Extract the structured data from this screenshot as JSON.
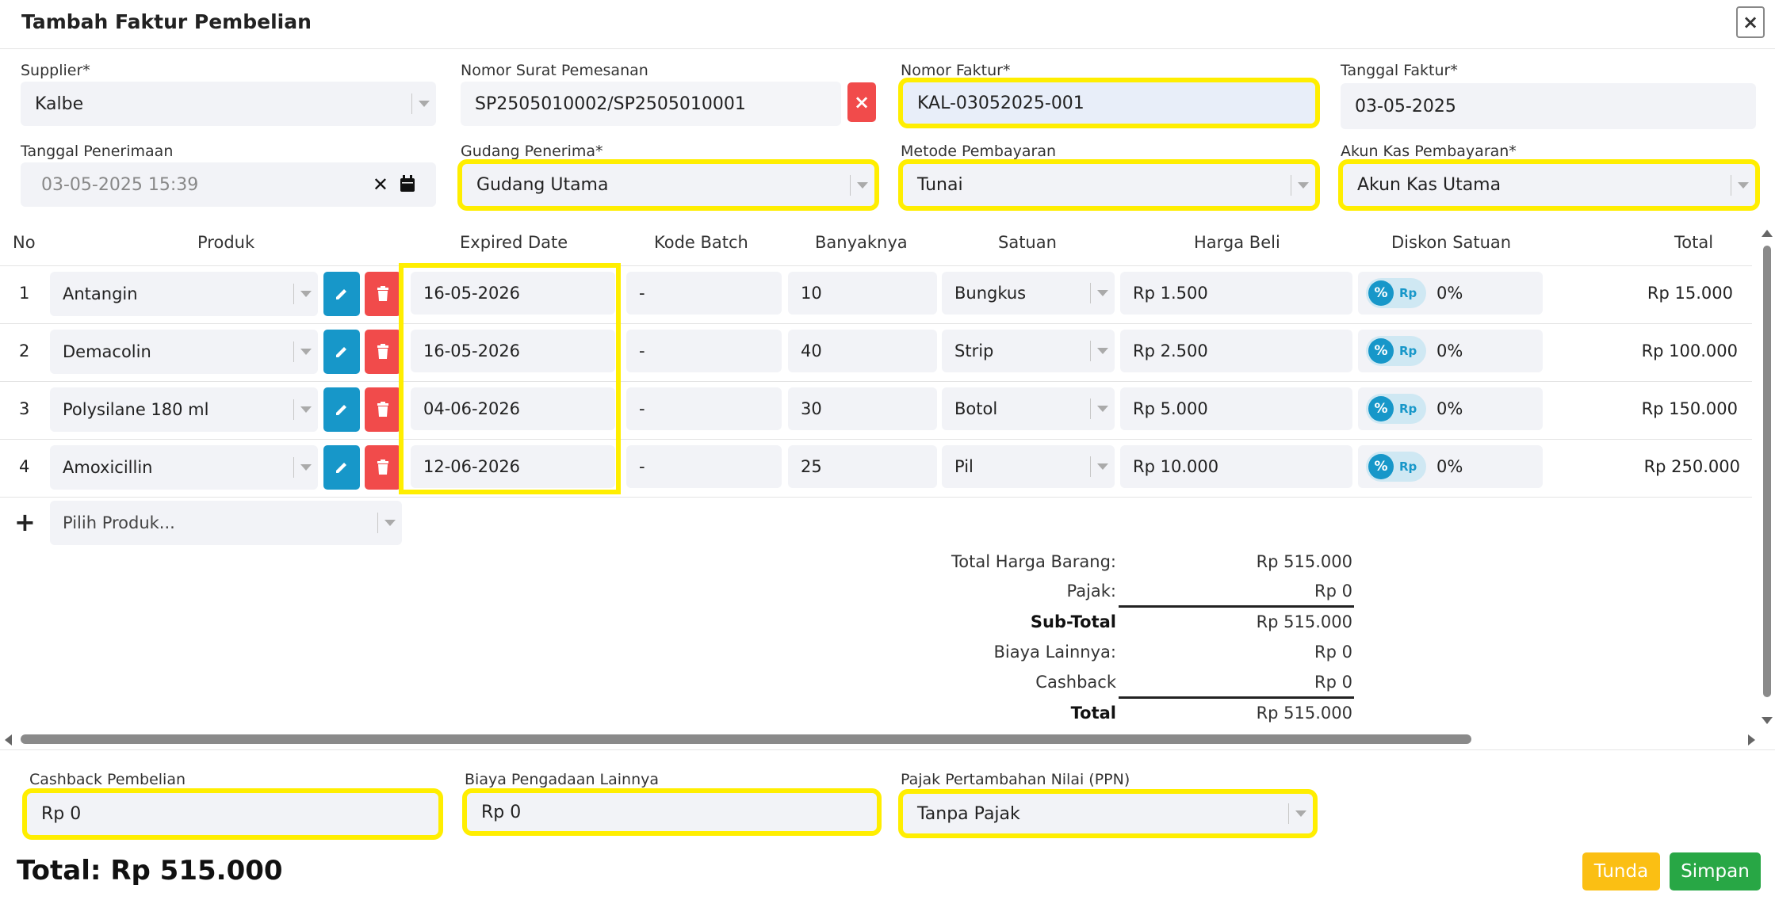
{
  "dialog": {
    "title": "Tambah Faktur Pembelian",
    "close": "×"
  },
  "form": {
    "supplier": {
      "label": "Supplier*",
      "value": "Kalbe"
    },
    "nomor_sp": {
      "label": "Nomor Surat Pemesanan",
      "value": "SP2505010002/SP2505010001",
      "clear": "×"
    },
    "nomor_faktur": {
      "label": "Nomor Faktur*",
      "value": "KAL-03052025-001"
    },
    "tanggal_faktur": {
      "label": "Tanggal Faktur*",
      "value": "03-05-2025"
    },
    "tanggal_penerimaan": {
      "label": "Tanggal Penerimaan",
      "value": "03-05-2025 15:39",
      "clear": "✕"
    },
    "gudang": {
      "label": "Gudang Penerima*",
      "value": "Gudang Utama"
    },
    "metode": {
      "label": "Metode Pembayaran",
      "value": "Tunai"
    },
    "akun_kas": {
      "label": "Akun Kas Pembayaran*",
      "value": "Akun Kas Utama"
    }
  },
  "table": {
    "headers": {
      "no": "No",
      "produk": "Produk",
      "expired": "Expired Date",
      "batch": "Kode Batch",
      "qty": "Banyaknya",
      "satuan": "Satuan",
      "harga": "Harga Beli",
      "diskon": "Diskon Satuan",
      "total": "Total"
    },
    "rows": [
      {
        "no": "1",
        "produk": "Antangin",
        "expired": "16-05-2026",
        "batch": "-",
        "qty": "10",
        "satuan": "Bungkus",
        "harga": "Rp 1.500",
        "diskon": "0%",
        "total": "Rp 15.000"
      },
      {
        "no": "2",
        "produk": "Demacolin",
        "expired": "16-05-2026",
        "batch": "-",
        "qty": "40",
        "satuan": "Strip",
        "harga": "Rp 2.500",
        "diskon": "0%",
        "total": "Rp 100.000"
      },
      {
        "no": "3",
        "produk": "Polysilane 180 ml",
        "expired": "04-06-2026",
        "batch": "-",
        "qty": "30",
        "satuan": "Botol",
        "harga": "Rp 5.000",
        "diskon": "0%",
        "total": "Rp 150.000"
      },
      {
        "no": "4",
        "produk": "Amoxicillin",
        "expired": "12-06-2026",
        "batch": "-",
        "qty": "25",
        "satuan": "Pil",
        "harga": "Rp 10.000",
        "diskon": "0%",
        "total": "Rp 250.000"
      }
    ],
    "toggle_pct": "%",
    "toggle_rp": "Rp",
    "add_icon": "+",
    "add_placeholder": "Pilih Produk..."
  },
  "summary": {
    "total_harga_label": "Total Harga Barang:",
    "total_harga_value": "Rp 515.000",
    "pajak_label": "Pajak:",
    "pajak_value": "Rp 0",
    "subtotal_label": "Sub-Total",
    "subtotal_value": "Rp 515.000",
    "biaya_label": "Biaya Lainnya:",
    "biaya_value": "Rp 0",
    "cashback_label": "Cashback",
    "cashback_value": "Rp 0",
    "total_label": "Total",
    "total_value": "Rp 515.000"
  },
  "footer": {
    "cashback": {
      "label": "Cashback Pembelian",
      "value": "Rp 0"
    },
    "biaya": {
      "label": "Biaya Pengadaan Lainnya",
      "value": "Rp 0"
    },
    "ppn": {
      "label": "Pajak Pertambahan Nilai (PPN)",
      "value": "Tanpa Pajak"
    },
    "grand_total": "Total: Rp 515.000",
    "tunda": "Tunda",
    "simpan": "Simpan"
  },
  "colors": {
    "yellow_highlight": "#ffee00",
    "edit_blue": "#1797c9",
    "delete_red": "#f14b4b",
    "tunda": "#fbbf13",
    "simpan": "#28a745"
  }
}
